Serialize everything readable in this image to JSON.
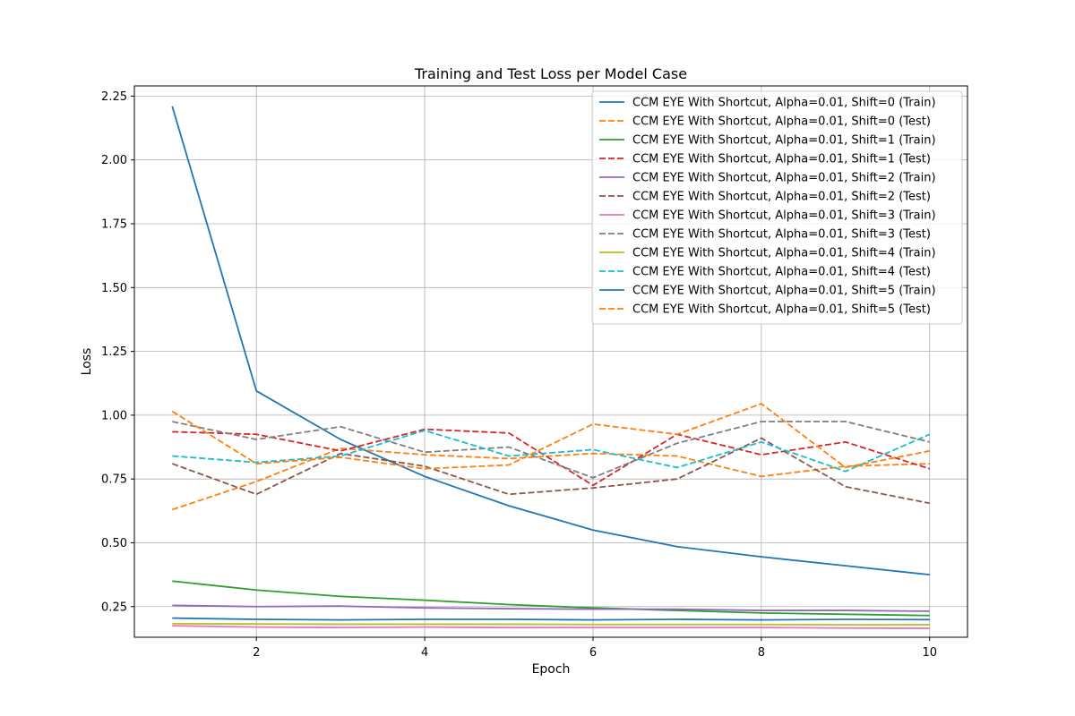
{
  "chart_data": {
    "type": "line",
    "title": "Training and Test Loss per Model Case",
    "xlabel": "Epoch",
    "ylabel": "Loss",
    "xlim": [
      0.55,
      10.45
    ],
    "ylim": [
      0.13,
      2.29
    ],
    "xticks": [
      2,
      4,
      6,
      8,
      10
    ],
    "yticks": [
      "0.25",
      "0.50",
      "0.75",
      "1.00",
      "1.25",
      "1.50",
      "1.75",
      "2.00",
      "2.25"
    ],
    "grid": true,
    "legend_position": "top-right",
    "x": [
      1,
      2,
      3,
      4,
      5,
      6,
      7,
      8,
      9,
      10
    ],
    "series": [
      {
        "name": "CCM EYE With Shortcut, Alpha=0.01, Shift=0 (Train)",
        "color": "#1f77b4",
        "style": "solid",
        "values": [
          2.21,
          1.095,
          0.905,
          0.76,
          0.645,
          0.55,
          0.485,
          0.445,
          0.41,
          0.375
        ]
      },
      {
        "name": "CCM EYE With Shortcut, Alpha=0.01, Shift=0 (Test)",
        "color": "#ff7f0e",
        "style": "dashed",
        "values": [
          0.63,
          0.74,
          0.87,
          0.845,
          0.83,
          0.85,
          0.84,
          0.76,
          0.8,
          0.81
        ]
      },
      {
        "name": "CCM EYE With Shortcut, Alpha=0.01, Shift=1 (Train)",
        "color": "#2ca02c",
        "style": "solid",
        "values": [
          0.35,
          0.315,
          0.29,
          0.275,
          0.258,
          0.245,
          0.235,
          0.225,
          0.22,
          0.215
        ]
      },
      {
        "name": "CCM EYE With Shortcut, Alpha=0.01, Shift=1 (Test)",
        "color": "#d62728",
        "style": "dashed",
        "values": [
          0.935,
          0.925,
          0.86,
          0.945,
          0.93,
          0.725,
          0.925,
          0.845,
          0.895,
          0.79
        ]
      },
      {
        "name": "CCM EYE With Shortcut, Alpha=0.01, Shift=2 (Train)",
        "color": "#9467bd",
        "style": "solid",
        "values": [
          0.255,
          0.25,
          0.252,
          0.245,
          0.242,
          0.24,
          0.24,
          0.235,
          0.235,
          0.232
        ]
      },
      {
        "name": "CCM EYE With Shortcut, Alpha=0.01, Shift=2 (Test)",
        "color": "#8c564b",
        "style": "dashed",
        "values": [
          0.81,
          0.69,
          0.85,
          0.8,
          0.69,
          0.715,
          0.75,
          0.91,
          0.72,
          0.655
        ]
      },
      {
        "name": "CCM EYE With Shortcut, Alpha=0.01, Shift=3 (Train)",
        "color": "#e377c2",
        "style": "solid",
        "values": [
          0.175,
          0.17,
          0.168,
          0.17,
          0.168,
          0.168,
          0.168,
          0.168,
          0.166,
          0.165
        ]
      },
      {
        "name": "CCM EYE With Shortcut, Alpha=0.01, Shift=3 (Test)",
        "color": "#7f7f7f",
        "style": "dashed",
        "values": [
          0.975,
          0.905,
          0.955,
          0.855,
          0.875,
          0.755,
          0.89,
          0.975,
          0.975,
          0.895
        ]
      },
      {
        "name": "CCM EYE With Shortcut, Alpha=0.01, Shift=4 (Train)",
        "color": "#bcbd22",
        "style": "solid",
        "values": [
          0.183,
          0.182,
          0.181,
          0.181,
          0.181,
          0.18,
          0.18,
          0.18,
          0.179,
          0.179
        ]
      },
      {
        "name": "CCM EYE With Shortcut, Alpha=0.01, Shift=4 (Test)",
        "color": "#17becf",
        "style": "dashed",
        "values": [
          0.84,
          0.815,
          0.84,
          0.94,
          0.84,
          0.865,
          0.795,
          0.895,
          0.78,
          0.925
        ]
      },
      {
        "name": "CCM EYE With Shortcut, Alpha=0.01, Shift=5 (Train)",
        "color": "#1f77b4",
        "style": "solid",
        "values": [
          0.205,
          0.2,
          0.198,
          0.2,
          0.2,
          0.198,
          0.2,
          0.198,
          0.2,
          0.199
        ]
      },
      {
        "name": "CCM EYE With Shortcut, Alpha=0.01, Shift=5 (Test)",
        "color": "#ff7f0e",
        "style": "dashed",
        "values": [
          1.015,
          0.81,
          0.835,
          0.79,
          0.805,
          0.965,
          0.925,
          1.045,
          0.795,
          0.86
        ]
      }
    ]
  }
}
